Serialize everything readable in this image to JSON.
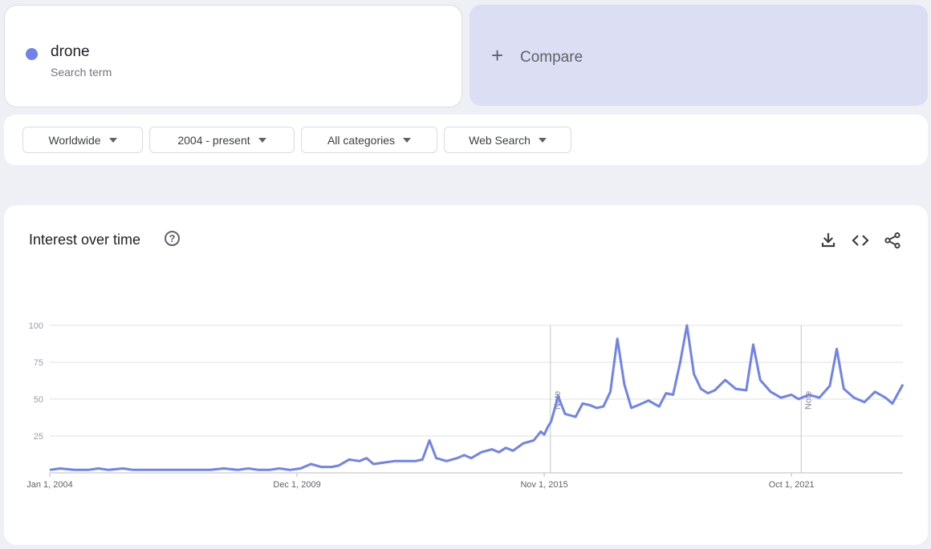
{
  "search_term": {
    "name": "drone",
    "subtitle": "Search term",
    "color": "#7083ea"
  },
  "compare": {
    "label": "Compare",
    "icon": "plus-icon"
  },
  "filters": [
    {
      "label": "Worldwide"
    },
    {
      "label": "2004 - present"
    },
    {
      "label": "All categories"
    },
    {
      "label": "Web Search"
    }
  ],
  "chart_card": {
    "title": "Interest over time",
    "help_icon": "help-icon",
    "tools": [
      "download-icon",
      "embed-code-icon",
      "share-icon"
    ]
  },
  "chart_data": {
    "type": "line",
    "title": "Interest over time",
    "xlabel": "",
    "ylabel": "",
    "ylim": [
      0,
      100
    ],
    "yticks": [
      25,
      50,
      75,
      100
    ],
    "x_range": [
      "2004-01-01",
      "2024-06-01"
    ],
    "x_ticks": [
      {
        "date": "2004-01-01",
        "label": "Jan 1, 2004"
      },
      {
        "date": "2009-12-01",
        "label": "Dec 1, 2009"
      },
      {
        "date": "2015-11-01",
        "label": "Nov 1, 2015"
      },
      {
        "date": "2021-10-01",
        "label": "Oct 1, 2021"
      }
    ],
    "grid": true,
    "notes": [
      {
        "date": "2016-01-01",
        "label": "Note"
      },
      {
        "date": "2022-01-01",
        "label": "Note"
      }
    ],
    "series": [
      {
        "color": "#7083ea",
        "points": [
          [
            "2004-01-01",
            2
          ],
          [
            "2004-04-01",
            3
          ],
          [
            "2004-08-01",
            2
          ],
          [
            "2004-12-01",
            2
          ],
          [
            "2005-03-01",
            3
          ],
          [
            "2005-06-01",
            2
          ],
          [
            "2005-10-01",
            3
          ],
          [
            "2006-01-01",
            2
          ],
          [
            "2006-05-01",
            2
          ],
          [
            "2006-09-01",
            2
          ],
          [
            "2007-01-01",
            2
          ],
          [
            "2007-06-01",
            2
          ],
          [
            "2007-11-01",
            2
          ],
          [
            "2008-03-01",
            3
          ],
          [
            "2008-07-01",
            2
          ],
          [
            "2008-10-01",
            3
          ],
          [
            "2009-01-01",
            2
          ],
          [
            "2009-04-01",
            2
          ],
          [
            "2009-07-01",
            3
          ],
          [
            "2009-10-01",
            2
          ],
          [
            "2010-01-01",
            3
          ],
          [
            "2010-04-01",
            6
          ],
          [
            "2010-07-01",
            4
          ],
          [
            "2010-10-01",
            4
          ],
          [
            "2010-12-01",
            5
          ],
          [
            "2011-03-01",
            9
          ],
          [
            "2011-06-01",
            8
          ],
          [
            "2011-08-01",
            10
          ],
          [
            "2011-10-01",
            6
          ],
          [
            "2012-01-01",
            7
          ],
          [
            "2012-04-01",
            8
          ],
          [
            "2012-07-01",
            8
          ],
          [
            "2012-10-01",
            8
          ],
          [
            "2012-12-01",
            9
          ],
          [
            "2013-02-01",
            22
          ],
          [
            "2013-04-01",
            10
          ],
          [
            "2013-07-01",
            8
          ],
          [
            "2013-10-01",
            10
          ],
          [
            "2013-12-01",
            12
          ],
          [
            "2014-02-01",
            10
          ],
          [
            "2014-05-01",
            14
          ],
          [
            "2014-08-01",
            16
          ],
          [
            "2014-10-01",
            14
          ],
          [
            "2014-12-01",
            17
          ],
          [
            "2015-02-01",
            15
          ],
          [
            "2015-05-01",
            20
          ],
          [
            "2015-08-01",
            22
          ],
          [
            "2015-09-01",
            25
          ],
          [
            "2015-10-01",
            28
          ],
          [
            "2015-11-01",
            26
          ],
          [
            "2015-12-01",
            31
          ],
          [
            "2016-01-01",
            35
          ],
          [
            "2016-03-01",
            52
          ],
          [
            "2016-05-01",
            40
          ],
          [
            "2016-08-01",
            38
          ],
          [
            "2016-10-01",
            47
          ],
          [
            "2016-12-01",
            46
          ],
          [
            "2017-02-01",
            44
          ],
          [
            "2017-04-01",
            45
          ],
          [
            "2017-06-01",
            55
          ],
          [
            "2017-08-01",
            91
          ],
          [
            "2017-10-01",
            60
          ],
          [
            "2017-12-01",
            44
          ],
          [
            "2018-02-01",
            46
          ],
          [
            "2018-05-01",
            49
          ],
          [
            "2018-08-01",
            45
          ],
          [
            "2018-10-01",
            54
          ],
          [
            "2018-12-01",
            53
          ],
          [
            "2019-02-01",
            75
          ],
          [
            "2019-04-01",
            100
          ],
          [
            "2019-06-01",
            67
          ],
          [
            "2019-08-01",
            57
          ],
          [
            "2019-10-01",
            54
          ],
          [
            "2019-12-01",
            56
          ],
          [
            "2020-03-01",
            63
          ],
          [
            "2020-06-01",
            57
          ],
          [
            "2020-09-01",
            56
          ],
          [
            "2020-11-01",
            87
          ],
          [
            "2021-01-01",
            63
          ],
          [
            "2021-04-01",
            55
          ],
          [
            "2021-07-01",
            51
          ],
          [
            "2021-10-01",
            53
          ],
          [
            "2021-12-01",
            50
          ],
          [
            "2022-03-01",
            53
          ],
          [
            "2022-06-01",
            51
          ],
          [
            "2022-09-01",
            59
          ],
          [
            "2022-11-01",
            84
          ],
          [
            "2023-01-01",
            57
          ],
          [
            "2023-04-01",
            51
          ],
          [
            "2023-07-01",
            48
          ],
          [
            "2023-10-01",
            55
          ],
          [
            "2024-01-01",
            51
          ],
          [
            "2024-03-01",
            47
          ],
          [
            "2024-06-01",
            60
          ]
        ]
      }
    ]
  }
}
